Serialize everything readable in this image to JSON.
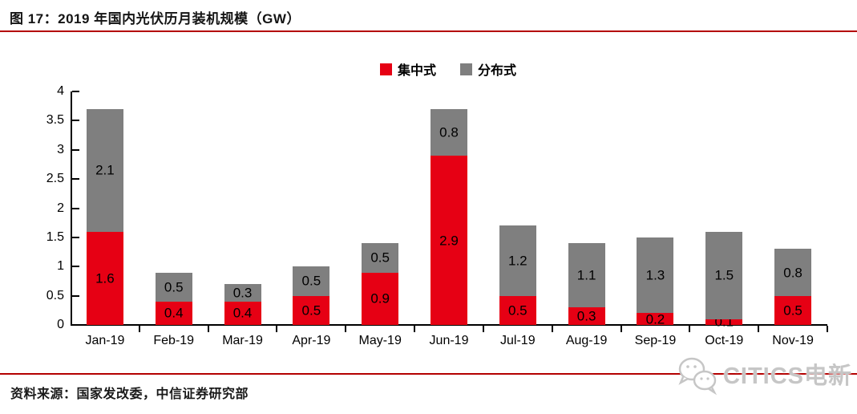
{
  "header": {
    "title": "图 17：2019 年国内光伏历月装机规模（GW）"
  },
  "legend": [
    {
      "label": "集中式",
      "color": "#e60014"
    },
    {
      "label": "分布式",
      "color": "#7f7f7f"
    }
  ],
  "chart_data": {
    "type": "bar",
    "stacked": true,
    "title": "2019 年国内光伏历月装机规模（GW）",
    "categories": [
      "Jan-19",
      "Feb-19",
      "Mar-19",
      "Apr-19",
      "May-19",
      "Jun-19",
      "Jul-19",
      "Aug-19",
      "Sep-19",
      "Oct-19",
      "Nov-19"
    ],
    "series": [
      {
        "name": "集中式",
        "color": "#e60014",
        "values": [
          1.6,
          0.4,
          0.4,
          0.5,
          0.9,
          2.9,
          0.5,
          0.3,
          0.2,
          0.1,
          0.5
        ]
      },
      {
        "name": "分布式",
        "color": "#7f7f7f",
        "values": [
          2.1,
          0.5,
          0.3,
          0.5,
          0.5,
          0.8,
          1.2,
          1.1,
          1.3,
          1.5,
          0.8
        ]
      }
    ],
    "xlabel": "",
    "ylabel": "",
    "ylim": [
      0,
      4
    ],
    "yticks": [
      0,
      0.5,
      1,
      1.5,
      2,
      2.5,
      3,
      3.5,
      4
    ],
    "grid": false,
    "legend_position": "top",
    "value_labels": true
  },
  "footer": {
    "source": "资料来源：国家发改委，中信证券研究部",
    "logo_text": "CITICS电新",
    "logo_icon": "wechat-icon"
  },
  "colors": {
    "accent_line": "#b40000",
    "bar_red": "#e60014",
    "bar_gray": "#7f7f7f",
    "logo_gray": "#c6c6c6"
  }
}
